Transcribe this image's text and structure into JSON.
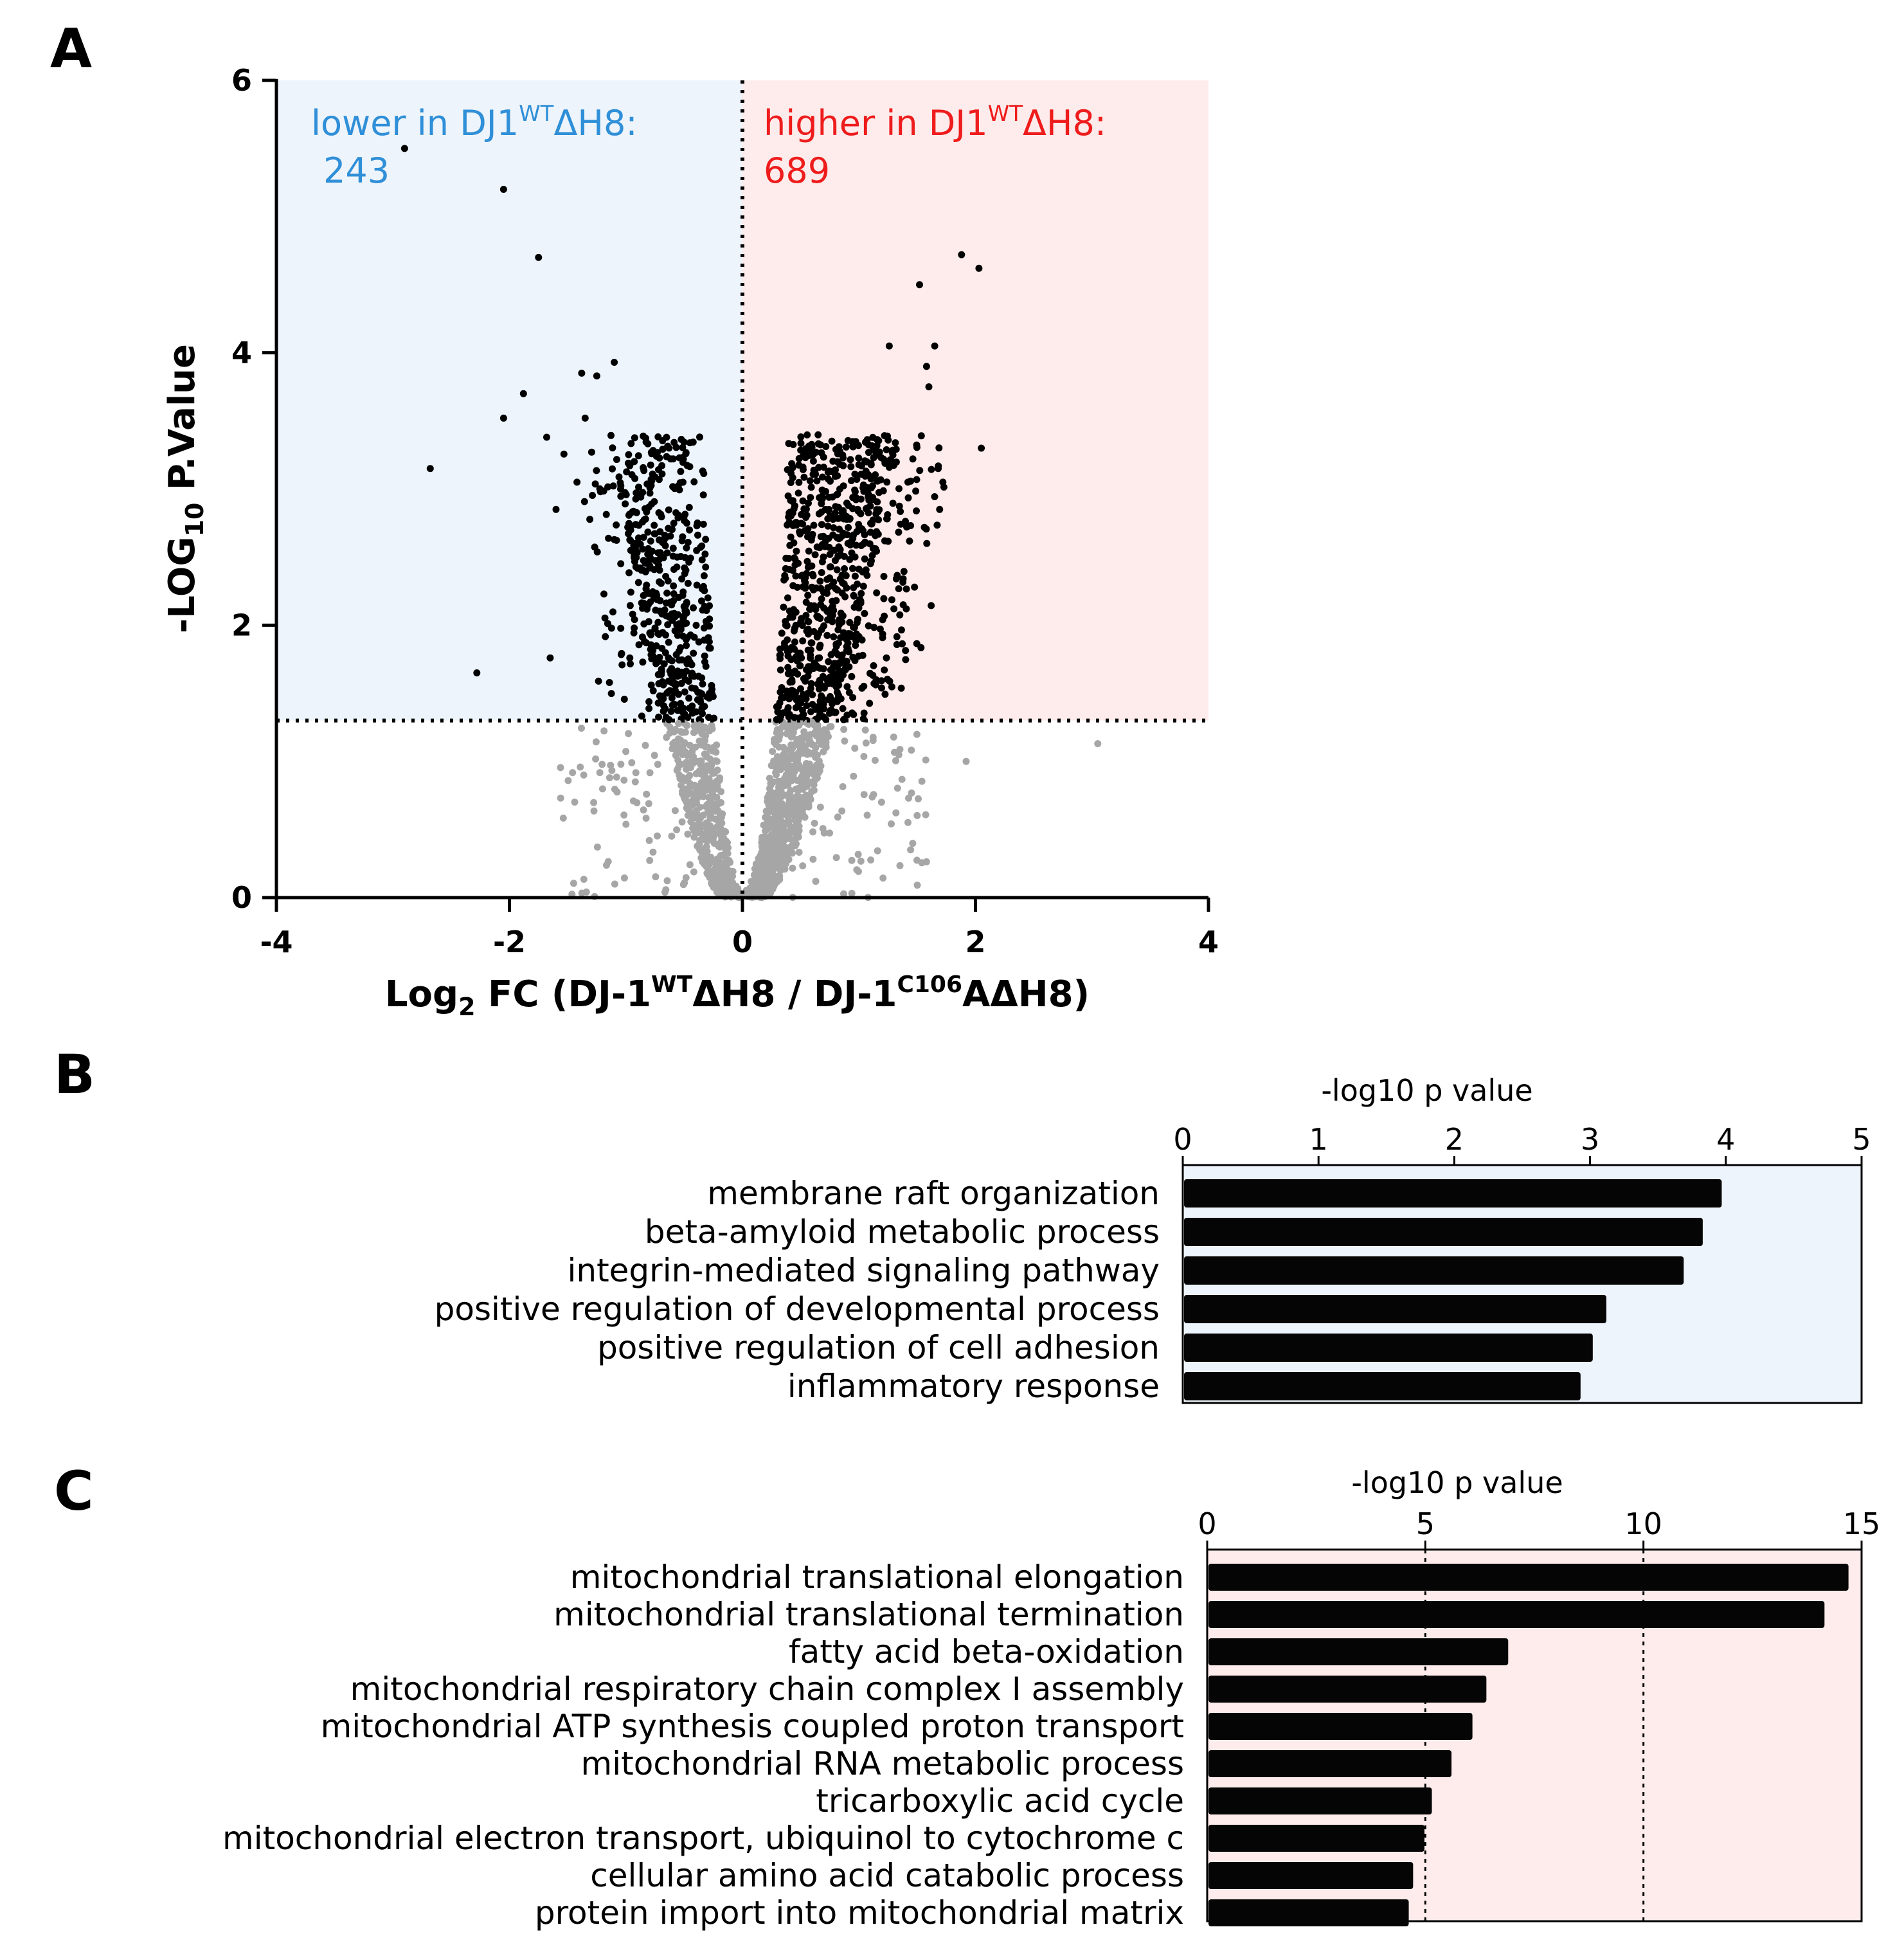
{
  "colors": {
    "lower_region": "#eef4fb",
    "higher_region": "#fdeceb",
    "lower_text": "#2f8fd8",
    "higher_text": "#ee1c1c",
    "significant_point": "#000000",
    "nonsignificant_point": "#a6a6a6",
    "bar": "#050505"
  },
  "panels": {
    "a": "A",
    "b": "B",
    "c": "C"
  },
  "chart_data": [
    {
      "type": "scatter",
      "panel": "A",
      "xlabel": {
        "prefix": "Log",
        "sub": "2",
        "part1": " FC (DJ-1",
        "sup1": "WT",
        "part2": "ΔH8 / DJ-1",
        "sup2": "C106",
        "part3": "AΔH8)"
      },
      "ylabel": {
        "prefix": "-LOG",
        "sub": "10",
        "suffix": " P.Value"
      },
      "xlim": [
        -4,
        4
      ],
      "ylim": [
        0,
        6
      ],
      "xticks": [
        "-4",
        "-2",
        "0",
        "2",
        "4"
      ],
      "yticks": [
        "0",
        "2",
        "4",
        "6"
      ],
      "significance_threshold": 1.3,
      "fc_zero": 0,
      "annotations": {
        "lower": {
          "text_before": "lower in DJ1",
          "sup": "WT",
          "text_after": "ΔH8:",
          "count": "243"
        },
        "higher": {
          "text_before": "higher in DJ1",
          "sup": "WT",
          "text_after": "ΔH8:",
          "count": "689"
        }
      },
      "labeled_points": [
        {
          "x": -2.9,
          "y": 5.5
        },
        {
          "x": -2.05,
          "y": 5.2
        },
        {
          "x": -1.75,
          "y": 4.7
        },
        {
          "x": -1.1,
          "y": 3.93
        },
        {
          "x": -1.38,
          "y": 3.85
        },
        {
          "x": -1.25,
          "y": 3.83
        },
        {
          "x": -1.88,
          "y": 3.7
        },
        {
          "x": -2.05,
          "y": 3.52
        },
        {
          "x": -1.35,
          "y": 3.52
        },
        {
          "x": -1.68,
          "y": 3.38
        },
        {
          "x": -2.68,
          "y": 3.15
        },
        {
          "x": -1.42,
          "y": 3.05
        },
        {
          "x": -1.6,
          "y": 2.85
        },
        {
          "x": -2.28,
          "y": 1.65
        },
        {
          "x": -1.65,
          "y": 1.76
        },
        {
          "x": 1.88,
          "y": 4.72
        },
        {
          "x": 2.03,
          "y": 4.62
        },
        {
          "x": 1.52,
          "y": 4.5
        },
        {
          "x": 1.65,
          "y": 4.05
        },
        {
          "x": 1.26,
          "y": 4.05
        },
        {
          "x": 1.58,
          "y": 3.9
        },
        {
          "x": 1.6,
          "y": 3.75
        },
        {
          "x": 2.05,
          "y": 3.3
        },
        {
          "x": 1.72,
          "y": 3.05
        },
        {
          "x": 1.42,
          "y": 3.05
        },
        {
          "x": 1.68,
          "y": 3.15
        },
        {
          "x": 1.38,
          "y": 2.15
        },
        {
          "x": 1.3,
          "y": 2.12
        },
        {
          "x": 3.05,
          "y": 1.13
        },
        {
          "x": 1.92,
          "y": 1.0
        }
      ]
    },
    {
      "type": "bar",
      "panel": "B",
      "orientation": "horizontal",
      "xlabel": "-log10 p value",
      "xlim": [
        0,
        5
      ],
      "xticks": [
        "0",
        "1",
        "2",
        "3",
        "4",
        "5"
      ],
      "categories": [
        "membrane raft organization",
        "beta-amyloid metabolic process",
        "integrin-mediated signaling pathway",
        "positive regulation of developmental process",
        "positive regulation of cell adhesion",
        "inflammatory response"
      ],
      "values": [
        3.97,
        3.83,
        3.69,
        3.12,
        3.02,
        2.93
      ]
    },
    {
      "type": "bar",
      "panel": "C",
      "orientation": "horizontal",
      "xlabel": "-log10 p value",
      "xlim": [
        0,
        15
      ],
      "xticks": [
        "0",
        "5",
        "10",
        "15"
      ],
      "reference_lines": [
        5,
        10
      ],
      "categories": [
        "mitochondrial translational elongation",
        "mitochondrial translational termination",
        "fatty acid beta-oxidation",
        "mitochondrial respiratory chain complex I assembly",
        "mitochondrial ATP synthesis coupled proton transport",
        "mitochondrial RNA metabolic process",
        "tricarboxylic acid cycle",
        "mitochondrial electron transport, ubiquinol to cytochrome c",
        "cellular amino acid catabolic process",
        "protein import into mitochondrial matrix"
      ],
      "values": [
        14.7,
        14.15,
        6.9,
        6.4,
        6.08,
        5.6,
        5.15,
        4.98,
        4.72,
        4.62
      ]
    }
  ]
}
